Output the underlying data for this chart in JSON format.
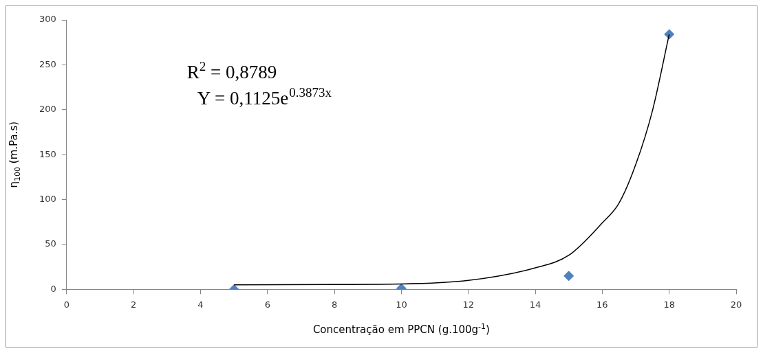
{
  "chart_data": {
    "type": "scatter",
    "xlabel": "Concentração em PPCN (g.100g$^{-1}$)",
    "ylabel": "η$_{100}$ (m.Pa.s)",
    "xlim": [
      0,
      20
    ],
    "xticks": [
      0,
      2,
      4,
      6,
      8,
      10,
      12,
      14,
      16,
      18,
      20
    ],
    "ylim": [
      0,
      300
    ],
    "yticks": [
      0,
      50,
      100,
      150,
      200,
      250,
      300
    ],
    "grid": false,
    "legend": false,
    "marker": "diamond",
    "annotations": [
      "R$^{2}$ = 0,8789",
      "Y = 0,1125e$^{0.3873x}$"
    ],
    "series": [
      {
        "color": "#4f81bd",
        "x": [
          5,
          10,
          15,
          18
        ],
        "values": [
          0,
          1,
          15,
          284
        ]
      },
      {
        "type": "line",
        "color": "#000000",
        "marker": "none",
        "x": [
          5,
          8,
          10,
          12,
          14,
          15,
          16,
          16.5,
          17,
          17.5,
          18
        ],
        "values": [
          5,
          5.5,
          6,
          10,
          24,
          38,
          74,
          96,
          139,
          199,
          284
        ]
      }
    ]
  }
}
